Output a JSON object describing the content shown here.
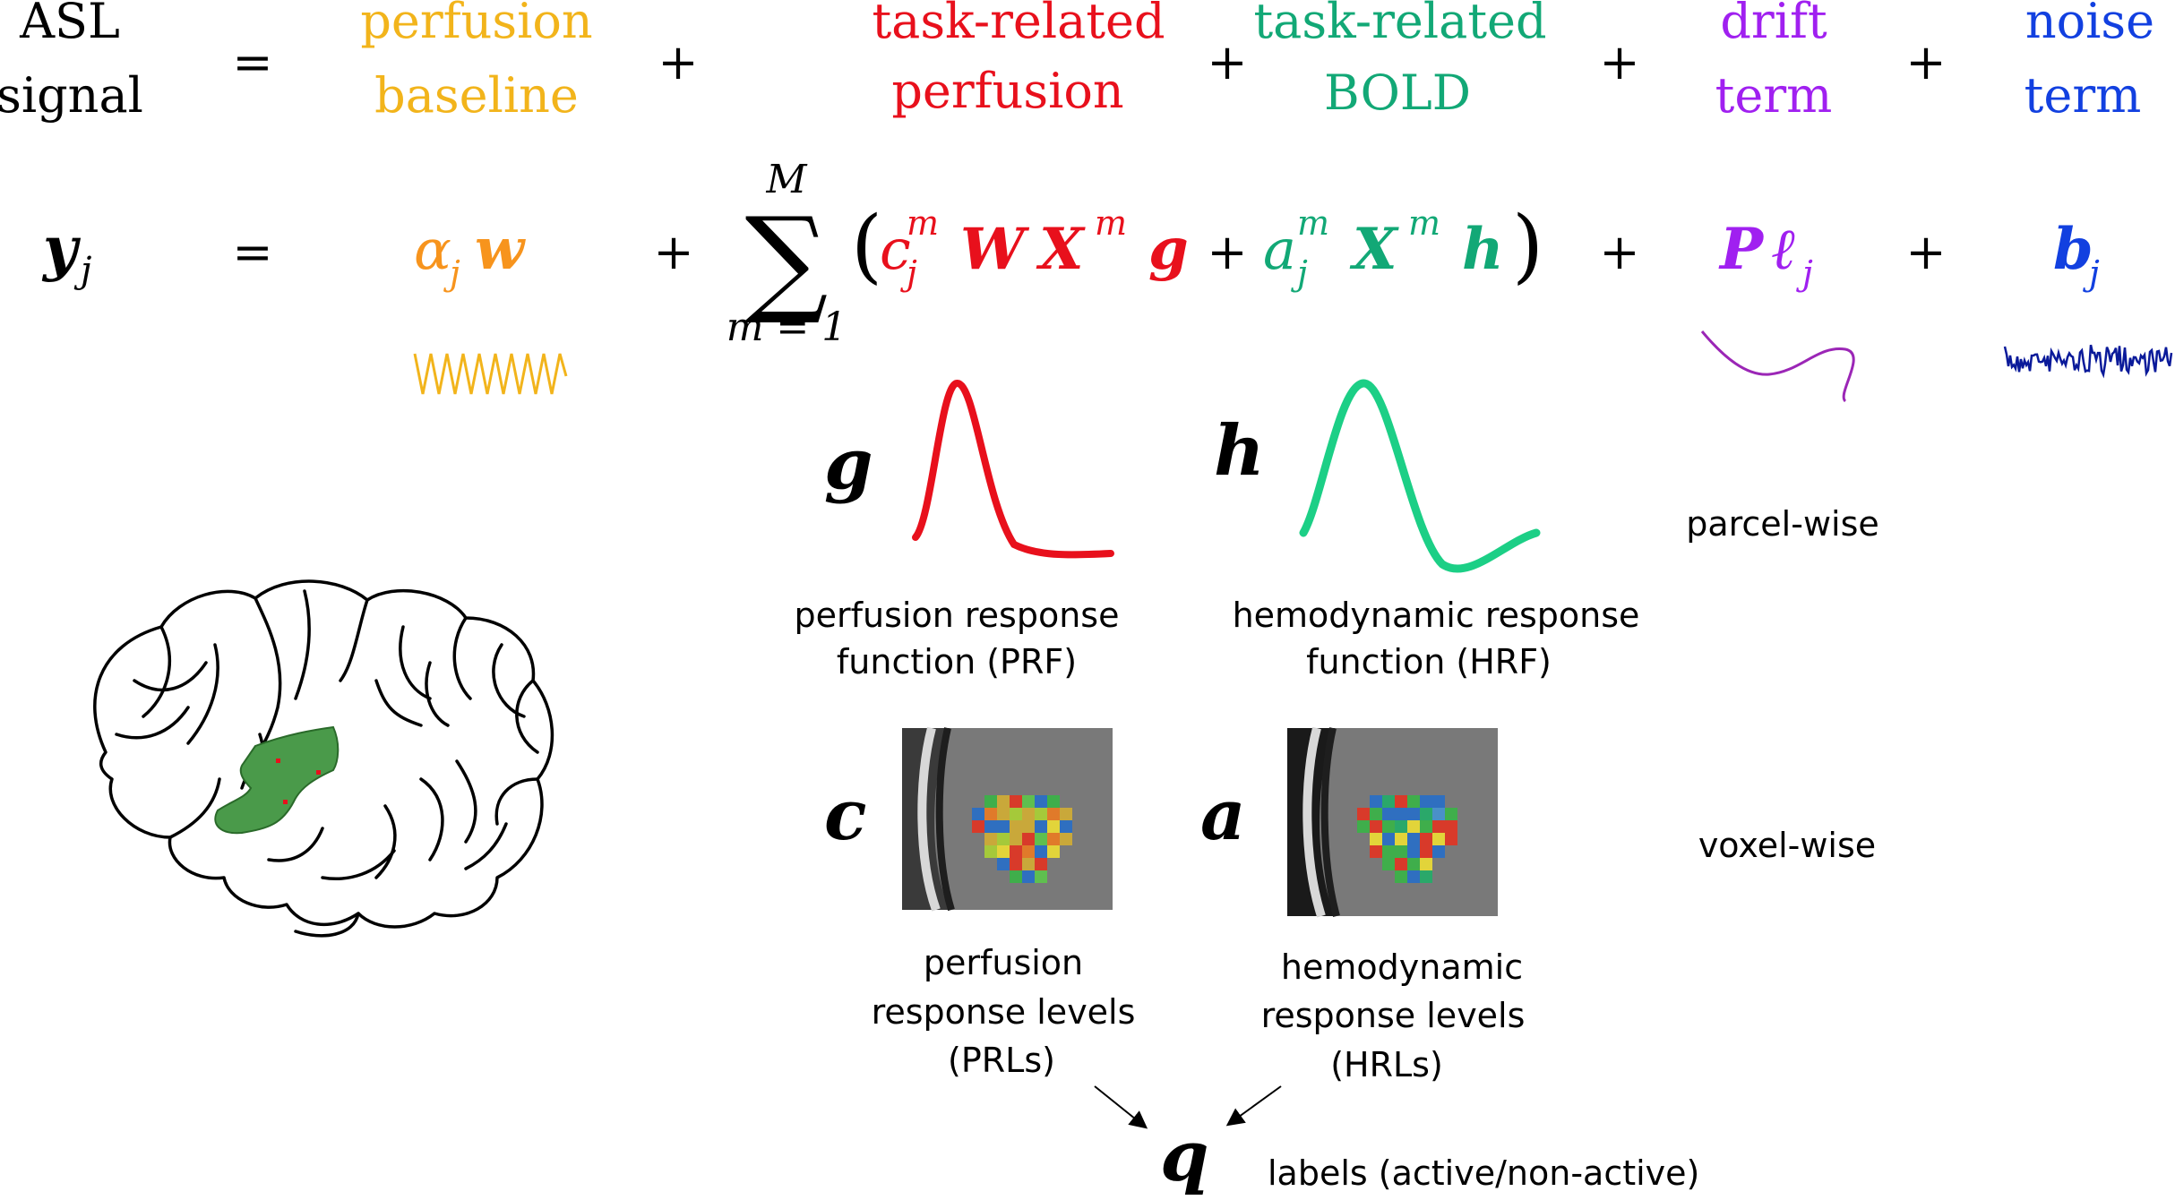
{
  "colors": {
    "black": "#000000",
    "baseline": "#f2b41b",
    "perfusion_orange": "#f7941d",
    "perfusion_red": "#e8101c",
    "bold_green": "#12a876",
    "bold_green_curve": "#1ccf86",
    "drift": "#a020f0",
    "noise": "#1240e0",
    "noise_dark": "#0a1a9a",
    "brain_region": "#4a9a4a"
  },
  "header": {
    "asl_signal": [
      "ASL",
      "signal"
    ],
    "perfusion_baseline": [
      "perfusion",
      "baseline"
    ],
    "task_related_perfusion": [
      "task-related",
      "perfusion"
    ],
    "task_related_bold": [
      "task-related",
      "BOLD"
    ],
    "drift_term": [
      "drift",
      "term"
    ],
    "noise_term": [
      "noise",
      "term"
    ],
    "equals": "=",
    "plus": "+"
  },
  "equation": {
    "lhs": "y",
    "lhs_sub": "j",
    "baseline_alpha": "α",
    "baseline_sub": "j",
    "baseline_w": "w",
    "sum_symbol": "∑",
    "sum_upper": "M",
    "sum_lower": "m = 1",
    "open_paren": "(",
    "close_paren": ")",
    "c": "c",
    "c_sup": "m",
    "c_sub": "j",
    "W": "W",
    "X": "X",
    "X_sup": "m",
    "g": "g",
    "a": "a",
    "a_sup": "m",
    "a_sub": "j",
    "h": "h",
    "P": "P",
    "ell": "ℓ",
    "ell_sub": "j",
    "b": "b",
    "b_sub": "j"
  },
  "response_functions": {
    "g_symbol": "g",
    "h_symbol": "h",
    "prf_caption": [
      "perfusion response",
      "function (PRF)"
    ],
    "hrf_caption": [
      "hemodynamic response",
      "function (HRF)"
    ],
    "parcel_wise": "parcel-wise"
  },
  "response_levels": {
    "c_symbol": "c",
    "a_symbol": "a",
    "voxel_wise": "voxel-wise",
    "prl_caption": [
      "perfusion",
      "response levels",
      "(PRLs)"
    ],
    "hrl_caption": [
      "hemodynamic",
      "response  levels",
      "(HRLs)"
    ]
  },
  "labels": {
    "q_symbol": "q",
    "caption": "labels (active/non-active)"
  }
}
